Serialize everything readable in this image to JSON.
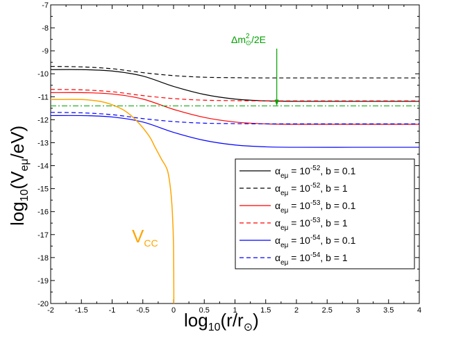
{
  "chart_data": {
    "type": "line",
    "xlabel": {
      "pre": "log",
      "sub": "10",
      "post": "(r/r",
      "subsym": "⊙",
      "end": ")"
    },
    "ylabel": {
      "pre": "log",
      "sub": "10",
      "mid": "(V",
      "sub2": "eμ",
      "post": "/eV)"
    },
    "xlim": [
      -2,
      4
    ],
    "ylim": [
      -20,
      -7
    ],
    "xticks": [
      -2,
      -1.5,
      -1,
      -0.5,
      0,
      0.5,
      1,
      1.5,
      2,
      2.5,
      3,
      3.5,
      4
    ],
    "xtick_labels": [
      "-2",
      "-1.5",
      "-1",
      "-0.5",
      "0",
      "0.5",
      "1",
      "1.5",
      "2",
      "2.5",
      "3",
      "3.5",
      "4"
    ],
    "yticks": [
      -20,
      -19,
      -18,
      -17,
      -16,
      -15,
      -14,
      -13,
      -12,
      -11,
      -10,
      -9,
      -8,
      -7
    ],
    "ytick_labels": [
      "-20",
      "-19",
      "-18",
      "-17",
      "-16",
      "-15",
      "-14",
      "-13",
      "-12",
      "-11",
      "-10",
      "-9",
      "-8",
      "-7"
    ],
    "series": [
      {
        "name": "alpha_emu = 10^-52, b = 0.1",
        "alpha_exp": "-52",
        "b": "0.1",
        "color": "#000000",
        "dash": "solid",
        "x": [
          -2,
          -1.5,
          -1,
          -0.5,
          0,
          0.5,
          1,
          1.5,
          2,
          3,
          4
        ],
        "y": [
          -9.82,
          -9.82,
          -9.88,
          -10.1,
          -10.55,
          -10.9,
          -11.1,
          -11.18,
          -11.2,
          -11.2,
          -11.2
        ]
      },
      {
        "name": "alpha_emu = 10^-52, b = 1",
        "alpha_exp": "-52",
        "b": "1",
        "color": "#000000",
        "dash": "dashed",
        "x": [
          -2,
          -1.5,
          -1,
          -0.5,
          0,
          0.5,
          1,
          1.5,
          2,
          3,
          4
        ],
        "y": [
          -9.68,
          -9.7,
          -9.78,
          -9.95,
          -10.08,
          -10.15,
          -10.17,
          -10.18,
          -10.18,
          -10.18,
          -10.18
        ]
      },
      {
        "name": "alpha_emu = 10^-53, b = 0.1",
        "alpha_exp": "-53",
        "b": "0.1",
        "color": "#ff0000",
        "dash": "solid",
        "x": [
          -2,
          -1.5,
          -1,
          -0.5,
          0,
          0.5,
          1,
          1.5,
          2,
          3,
          4
        ],
        "y": [
          -10.82,
          -10.82,
          -10.88,
          -11.1,
          -11.55,
          -11.9,
          -12.1,
          -12.18,
          -12.2,
          -12.2,
          -12.2
        ]
      },
      {
        "name": "alpha_emu = 10^-53, b = 1",
        "alpha_exp": "-53",
        "b": "1",
        "color": "#ff0000",
        "dash": "dashed",
        "x": [
          -2,
          -1.5,
          -1,
          -0.5,
          0,
          0.5,
          1,
          1.5,
          2,
          3,
          4
        ],
        "y": [
          -10.68,
          -10.7,
          -10.78,
          -10.95,
          -11.08,
          -11.15,
          -11.17,
          -11.18,
          -11.18,
          -11.18,
          -11.18
        ]
      },
      {
        "name": "alpha_emu = 10^-54, b = 0.1",
        "alpha_exp": "-54",
        "b": "0.1",
        "color": "#0000ff",
        "dash": "solid",
        "x": [
          -2,
          -1.5,
          -1,
          -0.5,
          0,
          0.5,
          1,
          1.5,
          2,
          3,
          4
        ],
        "y": [
          -11.82,
          -11.82,
          -11.88,
          -12.1,
          -12.55,
          -12.9,
          -13.1,
          -13.18,
          -13.2,
          -13.2,
          -13.2
        ]
      },
      {
        "name": "alpha_emu = 10^-54, b = 1",
        "alpha_exp": "-54",
        "b": "1",
        "color": "#0000ff",
        "dash": "dashed",
        "x": [
          -2,
          -1.5,
          -1,
          -0.5,
          0,
          0.5,
          1,
          1.5,
          2,
          3,
          4
        ],
        "y": [
          -11.68,
          -11.7,
          -11.78,
          -11.95,
          -12.08,
          -12.15,
          -12.17,
          -12.18,
          -12.18,
          -12.18,
          -12.18
        ]
      }
    ],
    "vcc": {
      "name": "V_CC",
      "color": "#ffa500",
      "x": [
        -2,
        -1.5,
        -1.2,
        -1,
        -0.8,
        -0.6,
        -0.4,
        -0.3,
        -0.2,
        -0.1,
        -0.05,
        -0.02,
        0,
        0.005
      ],
      "y": [
        -11.12,
        -11.12,
        -11.2,
        -11.35,
        -11.6,
        -12.05,
        -12.7,
        -13.2,
        -13.7,
        -14.2,
        -15.0,
        -16.0,
        -17.5,
        -20
      ]
    },
    "resonance": {
      "y": -11.4,
      "color": "#00a000",
      "label": "Δm²⊙/2E",
      "arrow_x": 1.68,
      "arrow_y_top": -10.2,
      "arrow_y_bottom": -11.4
    },
    "annotations": {
      "vcc_label": "V",
      "vcc_sub": "CC",
      "res_pre": "Δm",
      "res_sup": "2",
      "res_sub": "⊙",
      "res_post": "/2E"
    },
    "legend": {
      "position": "bottom-right",
      "base": "10",
      "alpha_sub": "eμ",
      "b_text": ", b = "
    }
  }
}
